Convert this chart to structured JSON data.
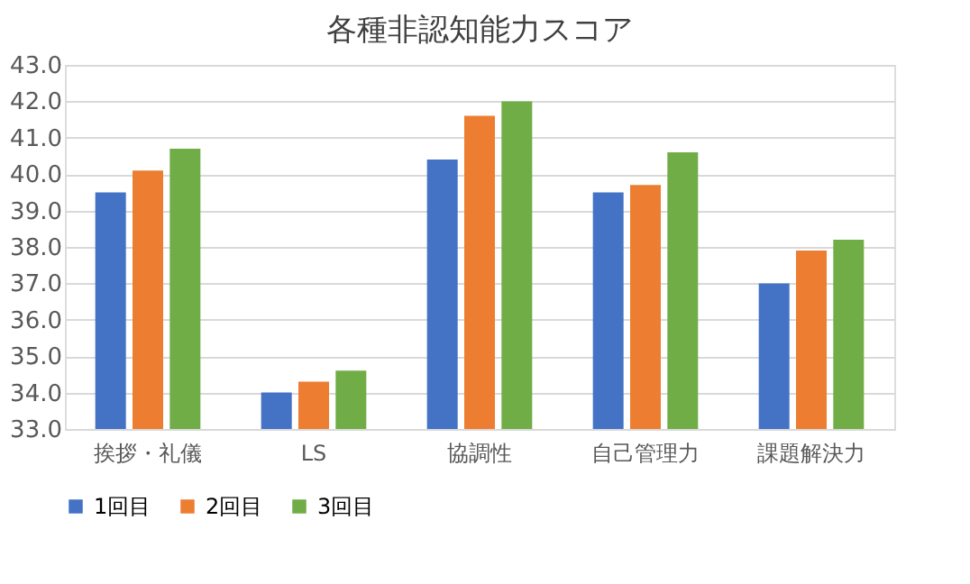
{
  "chart_data": {
    "type": "bar",
    "title": "各種非認知能力スコア",
    "categories": [
      "挨拶・礼儀",
      "LS",
      "協調性",
      "自己管理力",
      "課題解決力"
    ],
    "series": [
      {
        "name": "1回目",
        "color": "#4472c4",
        "values": [
          39.5,
          34.0,
          40.4,
          39.5,
          37.0
        ]
      },
      {
        "name": "2回目",
        "color": "#ed7d31",
        "values": [
          40.1,
          34.3,
          41.6,
          39.7,
          37.9
        ]
      },
      {
        "name": "3回目",
        "color": "#70ad47",
        "values": [
          40.7,
          34.6,
          42.0,
          40.6,
          38.2
        ]
      }
    ],
    "ylim": [
      33,
      43
    ],
    "yticks": [
      {
        "value": 33,
        "label": "33.0"
      },
      {
        "value": 34,
        "label": "34.0"
      },
      {
        "value": 35,
        "label": "35.0"
      },
      {
        "value": 36,
        "label": "36.0"
      },
      {
        "value": 37,
        "label": "37.0"
      },
      {
        "value": 38,
        "label": "38.0"
      },
      {
        "value": 39,
        "label": "39.0"
      },
      {
        "value": 40,
        "label": "40.0"
      },
      {
        "value": 41,
        "label": "41.0"
      },
      {
        "value": 42,
        "label": "42.0"
      },
      {
        "value": 43,
        "label": "43.0"
      }
    ],
    "grid": "y",
    "legend": "bottom"
  }
}
